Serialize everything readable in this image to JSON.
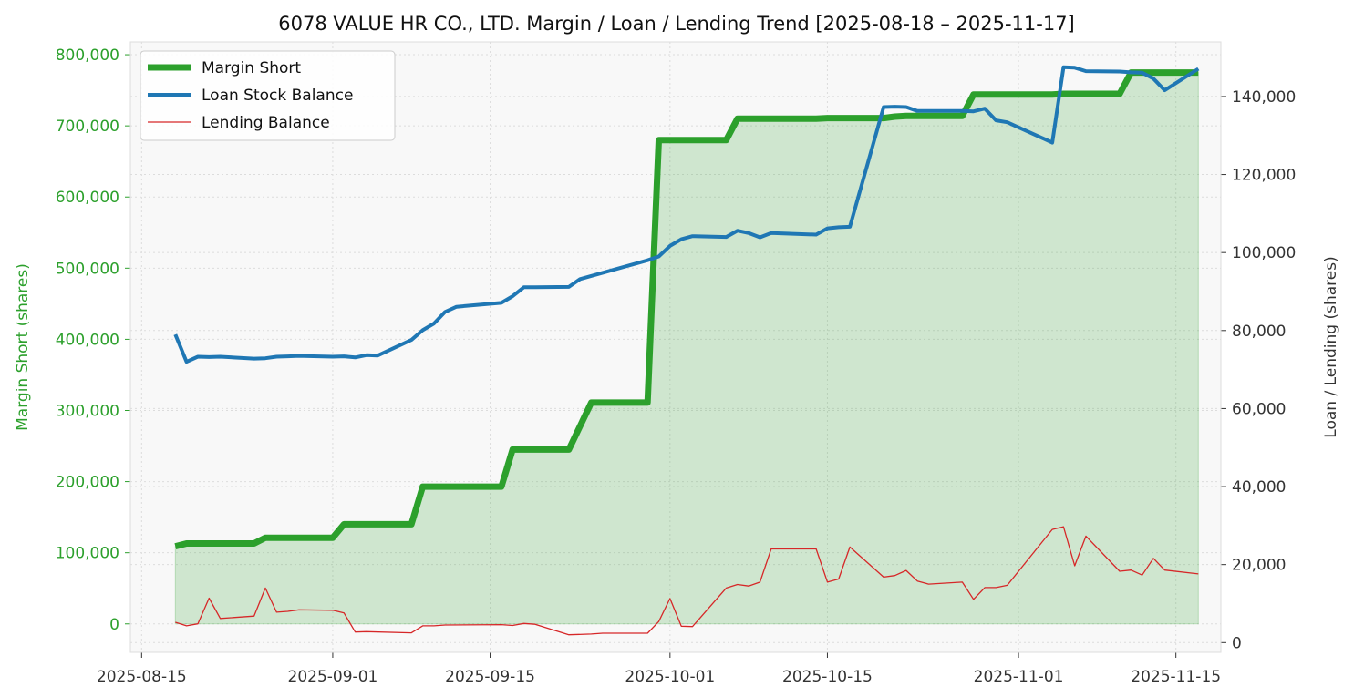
{
  "colors": {
    "margin": "#2ca02c",
    "loan": "#1f77b4",
    "lending": "#d62728",
    "plot_bg": "#f8f8f8",
    "grid": "#dcdcdc",
    "text": "#333333"
  },
  "chart_data": {
    "type": "line",
    "title": "6078 VALUE HR CO., LTD. Margin / Loan / Lending Trend [2025-08-18 – 2025-11-17]",
    "xlabel": "",
    "ylabel_left": "Margin Short (shares)",
    "ylabel_right": "Loan / Lending (shares)",
    "x_range": [
      "2025-08-14",
      "2025-11-19"
    ],
    "ylim_left": [
      -40000,
      818000
    ],
    "ylim_right": [
      -2500,
      154000
    ],
    "grid": true,
    "legend_position": "top-left",
    "x_ticks": [
      {
        "date": "2025-08-15",
        "label": "2025-08-15"
      },
      {
        "date": "2025-09-01",
        "label": "2025-09-01"
      },
      {
        "date": "2025-09-15",
        "label": "2025-09-15"
      },
      {
        "date": "2025-10-01",
        "label": "2025-10-01"
      },
      {
        "date": "2025-10-15",
        "label": "2025-10-15"
      },
      {
        "date": "2025-11-01",
        "label": "2025-11-01"
      },
      {
        "date": "2025-11-15",
        "label": "2025-11-15"
      }
    ],
    "y_ticks_left": [
      {
        "value": 0,
        "label": "0"
      },
      {
        "value": 100000,
        "label": "100,000"
      },
      {
        "value": 200000,
        "label": "200,000"
      },
      {
        "value": 300000,
        "label": "300,000"
      },
      {
        "value": 400000,
        "label": "400,000"
      },
      {
        "value": 500000,
        "label": "500,000"
      },
      {
        "value": 600000,
        "label": "600,000"
      },
      {
        "value": 700000,
        "label": "700,000"
      },
      {
        "value": 800000,
        "label": "800,000"
      }
    ],
    "y_ticks_right": [
      {
        "value": 0,
        "label": "0"
      },
      {
        "value": 20000,
        "label": "20,000"
      },
      {
        "value": 40000,
        "label": "40,000"
      },
      {
        "value": 60000,
        "label": "60,000"
      },
      {
        "value": 80000,
        "label": "80,000"
      },
      {
        "value": 100000,
        "label": "100,000"
      },
      {
        "value": 120000,
        "label": "120,000"
      },
      {
        "value": 140000,
        "label": "140,000"
      }
    ],
    "series": [
      {
        "name": "Margin Short",
        "axis": "left",
        "style": "thick-filled",
        "points": [
          [
            "2025-08-18",
            109000
          ],
          [
            "2025-08-19",
            113000
          ],
          [
            "2025-08-20",
            113000
          ],
          [
            "2025-08-21",
            113000
          ],
          [
            "2025-08-22",
            113000
          ],
          [
            "2025-08-25",
            113000
          ],
          [
            "2025-08-26",
            121000
          ],
          [
            "2025-08-27",
            121000
          ],
          [
            "2025-08-28",
            121000
          ],
          [
            "2025-08-29",
            121000
          ],
          [
            "2025-09-01",
            121000
          ],
          [
            "2025-09-02",
            140000
          ],
          [
            "2025-09-03",
            140000
          ],
          [
            "2025-09-04",
            140000
          ],
          [
            "2025-09-05",
            140000
          ],
          [
            "2025-09-08",
            140000
          ],
          [
            "2025-09-09",
            193000
          ],
          [
            "2025-09-10",
            193000
          ],
          [
            "2025-09-11",
            193000
          ],
          [
            "2025-09-12",
            193000
          ],
          [
            "2025-09-16",
            193000
          ],
          [
            "2025-09-17",
            245000
          ],
          [
            "2025-09-18",
            245000
          ],
          [
            "2025-09-19",
            245000
          ],
          [
            "2025-09-22",
            245000
          ],
          [
            "2025-09-24",
            311000
          ],
          [
            "2025-09-25",
            311000
          ],
          [
            "2025-09-26",
            311000
          ],
          [
            "2025-09-29",
            311000
          ],
          [
            "2025-09-30",
            680000
          ],
          [
            "2025-10-01",
            680000
          ],
          [
            "2025-10-02",
            680000
          ],
          [
            "2025-10-03",
            680000
          ],
          [
            "2025-10-06",
            680000
          ],
          [
            "2025-10-07",
            710000
          ],
          [
            "2025-10-08",
            710000
          ],
          [
            "2025-10-09",
            710000
          ],
          [
            "2025-10-10",
            710000
          ],
          [
            "2025-10-14",
            710000
          ],
          [
            "2025-10-15",
            711000
          ],
          [
            "2025-10-16",
            711000
          ],
          [
            "2025-10-17",
            711000
          ],
          [
            "2025-10-20",
            711000
          ],
          [
            "2025-10-21",
            713000
          ],
          [
            "2025-10-22",
            714000
          ],
          [
            "2025-10-23",
            714000
          ],
          [
            "2025-10-24",
            714000
          ],
          [
            "2025-10-27",
            714000
          ],
          [
            "2025-10-28",
            744000
          ],
          [
            "2025-10-29",
            744000
          ],
          [
            "2025-10-30",
            744000
          ],
          [
            "2025-10-31",
            744000
          ],
          [
            "2025-11-04",
            744000
          ],
          [
            "2025-11-05",
            745000
          ],
          [
            "2025-11-06",
            745000
          ],
          [
            "2025-11-07",
            745000
          ],
          [
            "2025-11-10",
            745000
          ],
          [
            "2025-11-11",
            775000
          ],
          [
            "2025-11-12",
            775000
          ],
          [
            "2025-11-13",
            775000
          ],
          [
            "2025-11-14",
            775000
          ],
          [
            "2025-11-17",
            775000
          ]
        ]
      },
      {
        "name": "Loan Stock Balance",
        "axis": "right",
        "style": "medium",
        "points": [
          [
            "2025-08-18",
            79000
          ],
          [
            "2025-08-19",
            72000
          ],
          [
            "2025-08-20",
            73300
          ],
          [
            "2025-08-21",
            73200
          ],
          [
            "2025-08-22",
            73300
          ],
          [
            "2025-08-25",
            72800
          ],
          [
            "2025-08-26",
            72900
          ],
          [
            "2025-08-27",
            73300
          ],
          [
            "2025-08-28",
            73400
          ],
          [
            "2025-08-29",
            73500
          ],
          [
            "2025-09-01",
            73300
          ],
          [
            "2025-09-02",
            73400
          ],
          [
            "2025-09-03",
            73100
          ],
          [
            "2025-09-04",
            73700
          ],
          [
            "2025-09-05",
            73600
          ],
          [
            "2025-09-08",
            77600
          ],
          [
            "2025-09-09",
            80100
          ],
          [
            "2025-09-10",
            81800
          ],
          [
            "2025-09-11",
            84800
          ],
          [
            "2025-09-12",
            86100
          ],
          [
            "2025-09-16",
            87100
          ],
          [
            "2025-09-17",
            88800
          ],
          [
            "2025-09-18",
            91100
          ],
          [
            "2025-09-19",
            91100
          ],
          [
            "2025-09-22",
            91200
          ],
          [
            "2025-09-23",
            93200
          ],
          [
            "2025-09-29",
            98000
          ],
          [
            "2025-09-30",
            99000
          ],
          [
            "2025-10-01",
            101700
          ],
          [
            "2025-10-02",
            103400
          ],
          [
            "2025-10-03",
            104200
          ],
          [
            "2025-10-06",
            104000
          ],
          [
            "2025-10-07",
            105600
          ],
          [
            "2025-10-08",
            105000
          ],
          [
            "2025-10-09",
            103900
          ],
          [
            "2025-10-10",
            105000
          ],
          [
            "2025-10-14",
            104600
          ],
          [
            "2025-10-15",
            106200
          ],
          [
            "2025-10-16",
            106500
          ],
          [
            "2025-10-17",
            106600
          ],
          [
            "2025-10-20",
            137300
          ],
          [
            "2025-10-21",
            137400
          ],
          [
            "2025-10-22",
            137300
          ],
          [
            "2025-10-23",
            136300
          ],
          [
            "2025-10-24",
            136300
          ],
          [
            "2025-10-27",
            136300
          ],
          [
            "2025-10-28",
            136200
          ],
          [
            "2025-10-29",
            136900
          ],
          [
            "2025-10-30",
            133900
          ],
          [
            "2025-10-31",
            133400
          ],
          [
            "2025-11-04",
            128200
          ],
          [
            "2025-11-05",
            147500
          ],
          [
            "2025-11-06",
            147400
          ],
          [
            "2025-11-07",
            146500
          ],
          [
            "2025-11-10",
            146400
          ],
          [
            "2025-11-11",
            146200
          ],
          [
            "2025-11-12",
            146100
          ],
          [
            "2025-11-13",
            144600
          ],
          [
            "2025-11-14",
            141600
          ],
          [
            "2025-11-17",
            147100
          ]
        ]
      },
      {
        "name": "Lending Balance",
        "axis": "right",
        "style": "thin",
        "points": [
          [
            "2025-08-18",
            5200
          ],
          [
            "2025-08-19",
            4300
          ],
          [
            "2025-08-20",
            4800
          ],
          [
            "2025-08-21",
            11400
          ],
          [
            "2025-08-22",
            6200
          ],
          [
            "2025-08-25",
            6800
          ],
          [
            "2025-08-26",
            14000
          ],
          [
            "2025-08-27",
            7800
          ],
          [
            "2025-08-28",
            8000
          ],
          [
            "2025-08-29",
            8400
          ],
          [
            "2025-09-01",
            8300
          ],
          [
            "2025-09-02",
            7600
          ],
          [
            "2025-09-03",
            2700
          ],
          [
            "2025-09-04",
            2800
          ],
          [
            "2025-09-08",
            2500
          ],
          [
            "2025-09-09",
            4300
          ],
          [
            "2025-09-10",
            4300
          ],
          [
            "2025-09-11",
            4500
          ],
          [
            "2025-09-16",
            4600
          ],
          [
            "2025-09-17",
            4400
          ],
          [
            "2025-09-18",
            4900
          ],
          [
            "2025-09-19",
            4700
          ],
          [
            "2025-09-22",
            2000
          ],
          [
            "2025-09-24",
            2200
          ],
          [
            "2025-09-25",
            2400
          ],
          [
            "2025-09-29",
            2400
          ],
          [
            "2025-09-30",
            5400
          ],
          [
            "2025-10-01",
            11300
          ],
          [
            "2025-10-02",
            4200
          ],
          [
            "2025-10-03",
            4100
          ],
          [
            "2025-10-06",
            14000
          ],
          [
            "2025-10-07",
            14900
          ],
          [
            "2025-10-08",
            14500
          ],
          [
            "2025-10-09",
            15500
          ],
          [
            "2025-10-10",
            24000
          ],
          [
            "2025-10-14",
            24000
          ],
          [
            "2025-10-15",
            15500
          ],
          [
            "2025-10-16",
            16300
          ],
          [
            "2025-10-17",
            24500
          ],
          [
            "2025-10-20",
            16800
          ],
          [
            "2025-10-21",
            17200
          ],
          [
            "2025-10-22",
            18500
          ],
          [
            "2025-10-23",
            15800
          ],
          [
            "2025-10-24",
            15000
          ],
          [
            "2025-10-27",
            15500
          ],
          [
            "2025-10-28",
            11100
          ],
          [
            "2025-10-29",
            14100
          ],
          [
            "2025-10-30",
            14100
          ],
          [
            "2025-10-31",
            14700
          ],
          [
            "2025-11-04",
            29000
          ],
          [
            "2025-11-05",
            29700
          ],
          [
            "2025-11-06",
            19700
          ],
          [
            "2025-11-07",
            27300
          ],
          [
            "2025-11-10",
            18300
          ],
          [
            "2025-11-11",
            18600
          ],
          [
            "2025-11-12",
            17300
          ],
          [
            "2025-11-13",
            21600
          ],
          [
            "2025-11-14",
            18600
          ],
          [
            "2025-11-17",
            17600
          ]
        ]
      }
    ]
  }
}
